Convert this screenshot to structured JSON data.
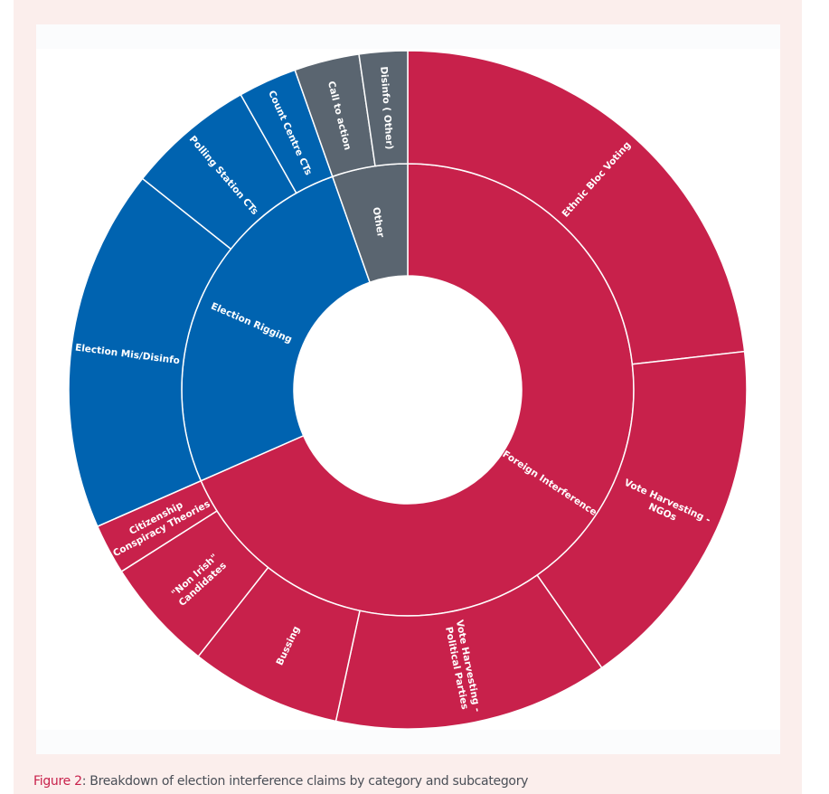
{
  "caption": {
    "figure_label": "Figure 2",
    "separator": ":",
    "text": " Breakdown of election interference claims by category and subcategory"
  },
  "colors": {
    "foreign_interference": "#c8214b",
    "election_rigging": "#0063b0",
    "other": "#5a6570",
    "frame_background": "#fbeeec",
    "separator": "#ffffff"
  },
  "chart_data": {
    "type": "sunburst",
    "title": "",
    "unit": "estimated share of claims (%)",
    "start_angle": "top, clockwise",
    "categories": [
      {
        "name": "Foreign Interference",
        "color_key": "foreign_interference",
        "value": 68.4,
        "children": [
          {
            "name": "Ethnic Bloc Voting",
            "value": 23.2
          },
          {
            "name": "Vote Harvesting - NGOs",
            "lines": [
              "Vote Harvesting  -",
              "NGOs"
            ],
            "value": 17.1
          },
          {
            "name": "Vote Harvesting - Political Parties",
            "lines": [
              "Vote Harvesting -",
              "Political Parties"
            ],
            "value": 13.1
          },
          {
            "name": "Bussing",
            "value": 7.2
          },
          {
            "name": "\"Non Irish\" Candidates",
            "lines": [
              "\"Non Irish\"",
              "Candidates"
            ],
            "value": 5.4
          },
          {
            "name": "Citizenship Conspiracy Theories",
            "lines": [
              "Citizenship",
              "Conspiracy Theories"
            ],
            "value": 2.4
          }
        ]
      },
      {
        "name": "Election Rigging",
        "color_key": "election_rigging",
        "value": 26.2,
        "children": [
          {
            "name": "Election Mis/Disinfo",
            "lines": [
              "Election  Mis/Disinfo"
            ],
            "value": 17.3
          },
          {
            "name": "Polling Station CTs",
            "value": 6.1
          },
          {
            "name": "Count Centre CTs",
            "value": 2.8
          }
        ]
      },
      {
        "name": "Other",
        "color_key": "other",
        "value": 5.4,
        "children": [
          {
            "name": "Call to action",
            "value": 3.1
          },
          {
            "name": "Disinfo ( Other)",
            "value": 2.3
          }
        ]
      }
    ],
    "legend": "none (labels on segments)"
  }
}
